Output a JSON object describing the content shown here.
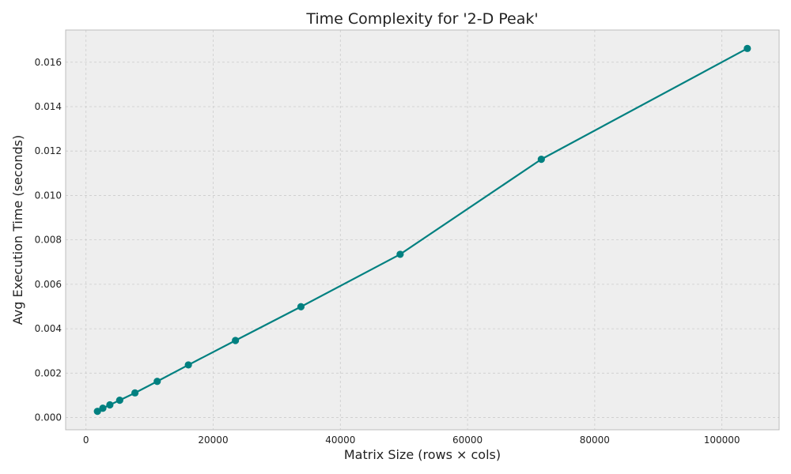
{
  "chart_data": {
    "type": "line",
    "title": "Time Complexity for '2-D Peak'",
    "xlabel": "Matrix Size (rows × cols)",
    "ylabel": "Avg Execution Time (seconds)",
    "xlim": [
      -3200,
      109000
    ],
    "ylim": [
      -0.00055,
      0.01745
    ],
    "x_ticks": [
      0,
      20000,
      40000,
      60000,
      80000,
      100000
    ],
    "x_tick_labels": [
      "0",
      "20000",
      "40000",
      "60000",
      "80000",
      "100000"
    ],
    "y_ticks": [
      0,
      0.002,
      0.004,
      0.006,
      0.008,
      0.01,
      0.012,
      0.014,
      0.016
    ],
    "y_tick_labels": [
      "0.000",
      "0.002",
      "0.004",
      "0.006",
      "0.008",
      "0.010",
      "0.012",
      "0.014",
      "0.016"
    ],
    "grid": true,
    "series": [
      {
        "color": "#008080",
        "x": [
          1800,
          2650,
          3750,
          5300,
          7700,
          11200,
          16100,
          23500,
          33800,
          49400,
          71600,
          104000
        ],
        "y": [
          0.00028,
          0.00042,
          0.00057,
          0.00078,
          0.00111,
          0.00163,
          0.00237,
          0.00347,
          0.00499,
          0.00735,
          0.01163,
          0.01662
        ]
      }
    ],
    "colors": {
      "plot_background": "#eeeeee",
      "grid": "#cccccc",
      "frame": "#bcbcbc"
    }
  }
}
